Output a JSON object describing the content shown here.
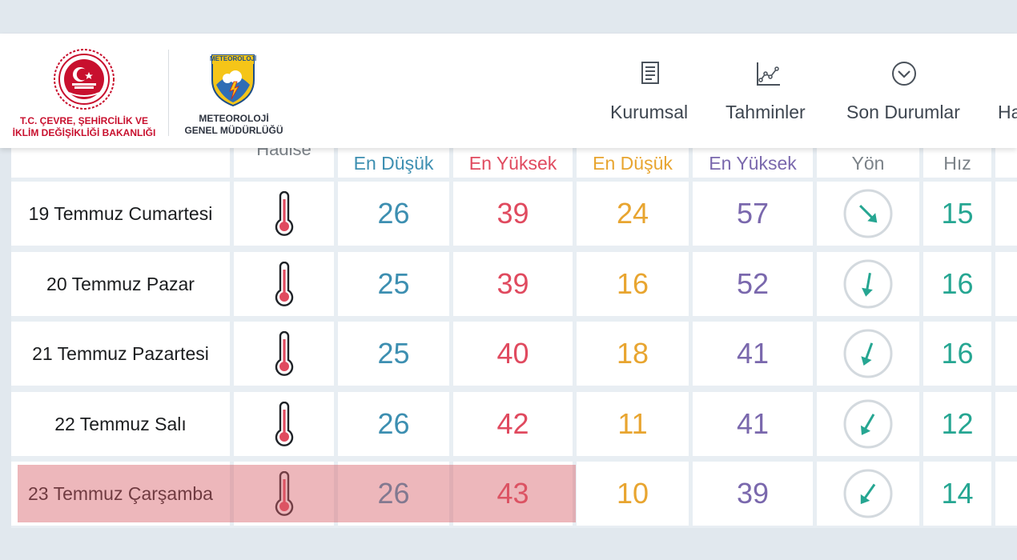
{
  "header": {
    "ministry_name_line1": "T.C. ÇEVRE, ŞEHİRCİLİK VE",
    "ministry_name_line2": "İKLİM DEĞİŞİKLİĞİ BAKANLIĞI",
    "mgm_badge_text": "METEOROLOJİ",
    "mgm_name_line1": "METEOROLOJİ",
    "mgm_name_line2": "GENEL MÜDÜRLÜĞÜ",
    "nav": [
      {
        "label": "Kurumsal",
        "icon": "document-icon"
      },
      {
        "label": "Tahminler",
        "icon": "chart-icon"
      },
      {
        "label": "Son Durumlar",
        "icon": "chevron-circle-icon"
      },
      {
        "label": "Ha",
        "icon": "none"
      }
    ]
  },
  "table": {
    "hadise_header_partial": "Hadise",
    "column_headers": {
      "temp_low": "En Düşük",
      "temp_high": "En Yüksek",
      "feel_low": "En Düşük",
      "feel_high": "En Yüksek",
      "wind_dir": "Yön",
      "wind_speed": "Hız"
    },
    "colors": {
      "temp_low": "#3d8fb1",
      "temp_high": "#e04a5f",
      "feel_low": "#e8a530",
      "feel_high": "#7a68ad",
      "wind": "#26a692",
      "highlight": "#e8b4b7"
    },
    "rows": [
      {
        "day": "19 Temmuz Cumartesi",
        "icon": "thermometer-icon",
        "temp_low": "26",
        "temp_high": "39",
        "feel_low": "24",
        "feel_high": "57",
        "wind_dir_deg": 135,
        "wind_speed": "15"
      },
      {
        "day": "20 Temmuz Pazar",
        "icon": "thermometer-icon",
        "temp_low": "25",
        "temp_high": "39",
        "feel_low": "16",
        "feel_high": "52",
        "wind_dir_deg": 190,
        "wind_speed": "16"
      },
      {
        "day": "21 Temmuz Pazartesi",
        "icon": "thermometer-icon",
        "temp_low": "25",
        "temp_high": "40",
        "feel_low": "18",
        "feel_high": "41",
        "wind_dir_deg": 200,
        "wind_speed": "16"
      },
      {
        "day": "22 Temmuz Salı",
        "icon": "thermometer-icon",
        "temp_low": "26",
        "temp_high": "42",
        "feel_low": "11",
        "feel_high": "41",
        "wind_dir_deg": 210,
        "wind_speed": "12"
      },
      {
        "day": "23 Temmuz Çarşamba",
        "icon": "thermometer-icon",
        "temp_low": "26",
        "temp_high": "43",
        "feel_low": "10",
        "feel_high": "39",
        "wind_dir_deg": 215,
        "wind_speed": "14",
        "highlighted": true
      }
    ]
  }
}
